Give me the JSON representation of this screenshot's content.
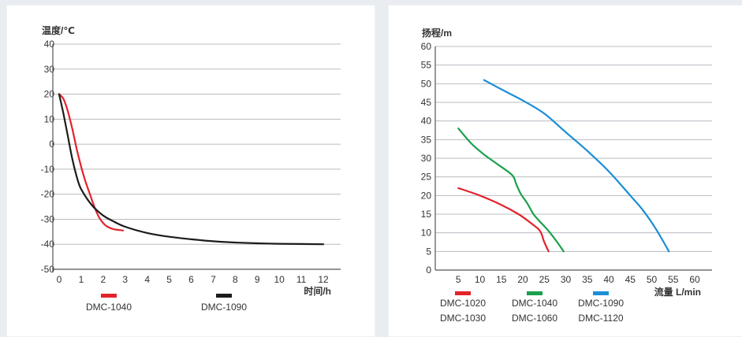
{
  "chart_data": [
    {
      "type": "line",
      "ylabel": "温度/℃",
      "xlabel": "时间/h",
      "x_ticks": [
        "0",
        "1",
        "2",
        "3",
        "4",
        "5",
        "6",
        "7",
        "8",
        "9",
        "10",
        "11",
        "12"
      ],
      "y_ticks": [
        "40",
        "30",
        "20",
        "10",
        "0",
        "-10",
        "-20",
        "-30",
        "-40",
        "-50"
      ],
      "xlim": [
        0,
        12
      ],
      "ylim": [
        -50,
        40
      ],
      "grid": true,
      "legend_position": "bottom",
      "series": [
        {
          "name": "DMC-1040",
          "color": "#e3232c",
          "points": [
            [
              0,
              20
            ],
            [
              0.2,
              18
            ],
            [
              0.4,
              13
            ],
            [
              0.6,
              6
            ],
            [
              0.8,
              -2
            ],
            [
              1,
              -9
            ],
            [
              1.2,
              -15
            ],
            [
              1.4,
              -20
            ],
            [
              1.6,
              -25
            ],
            [
              1.8,
              -29
            ],
            [
              2,
              -31.5
            ],
            [
              2.2,
              -33
            ],
            [
              2.5,
              -34
            ],
            [
              2.9,
              -34.5
            ]
          ]
        },
        {
          "name": "DMC-1090",
          "color": "#1c1c1c",
          "points": [
            [
              0,
              20
            ],
            [
              0.2,
              12
            ],
            [
              0.4,
              3
            ],
            [
              0.6,
              -6
            ],
            [
              0.8,
              -13
            ],
            [
              1,
              -18
            ],
            [
              1.5,
              -24.5
            ],
            [
              2,
              -28.5
            ],
            [
              2.5,
              -31
            ],
            [
              3,
              -33
            ],
            [
              4,
              -35.5
            ],
            [
              5,
              -37
            ],
            [
              6,
              -38
            ],
            [
              7,
              -38.8
            ],
            [
              8,
              -39.3
            ],
            [
              9,
              -39.6
            ],
            [
              10,
              -39.8
            ],
            [
              11,
              -39.9
            ],
            [
              12,
              -40
            ]
          ]
        }
      ]
    },
    {
      "type": "line",
      "ylabel": "扬程/m",
      "xlabel": "流量 L/min",
      "x_ticks": [
        "5",
        "10",
        "15",
        "20",
        "25",
        "30",
        "35",
        "40",
        "45",
        "50",
        "55",
        "60"
      ],
      "y_ticks": [
        "60",
        "55",
        "50",
        "45",
        "40",
        "35",
        "30",
        "25",
        "20",
        "15",
        "10",
        "5",
        "0"
      ],
      "xlim": [
        0,
        60
      ],
      "ylim": [
        0,
        60
      ],
      "grid": true,
      "legend_position": "bottom",
      "series": [
        {
          "name": "DMC-1020 / DMC-1030",
          "labels": [
            "DMC-1020",
            "DMC-1030"
          ],
          "color": "#e3232c",
          "points": [
            [
              5,
              22
            ],
            [
              10,
              20
            ],
            [
              15,
              17.5
            ],
            [
              19,
              15
            ],
            [
              22,
              12.5
            ],
            [
              24,
              10.5
            ],
            [
              25,
              7.5
            ],
            [
              26,
              5
            ]
          ]
        },
        {
          "name": "DMC-1040 / DMC-1060",
          "labels": [
            "DMC-1040",
            "DMC-1060"
          ],
          "color": "#19a04b",
          "points": [
            [
              5,
              38
            ],
            [
              8,
              34
            ],
            [
              11,
              31
            ],
            [
              14,
              28.5
            ],
            [
              17.5,
              25.5
            ],
            [
              18.5,
              23
            ],
            [
              19.5,
              20.5
            ],
            [
              21,
              18
            ],
            [
              22.5,
              15
            ],
            [
              24,
              13
            ],
            [
              26,
              10.5
            ],
            [
              28,
              7.5
            ],
            [
              29.5,
              5
            ]
          ]
        },
        {
          "name": "DMC-1090 / DMC-1120",
          "labels": [
            "DMC-1090",
            "DMC-1120"
          ],
          "color": "#1a8ed6",
          "points": [
            [
              11,
              51
            ],
            [
              15,
              48.5
            ],
            [
              20,
              45.5
            ],
            [
              25,
              42
            ],
            [
              30,
              37
            ],
            [
              35,
              32
            ],
            [
              40,
              26.5
            ],
            [
              45,
              20
            ],
            [
              48,
              16
            ],
            [
              51,
              11
            ],
            [
              54,
              5
            ]
          ]
        }
      ]
    }
  ]
}
